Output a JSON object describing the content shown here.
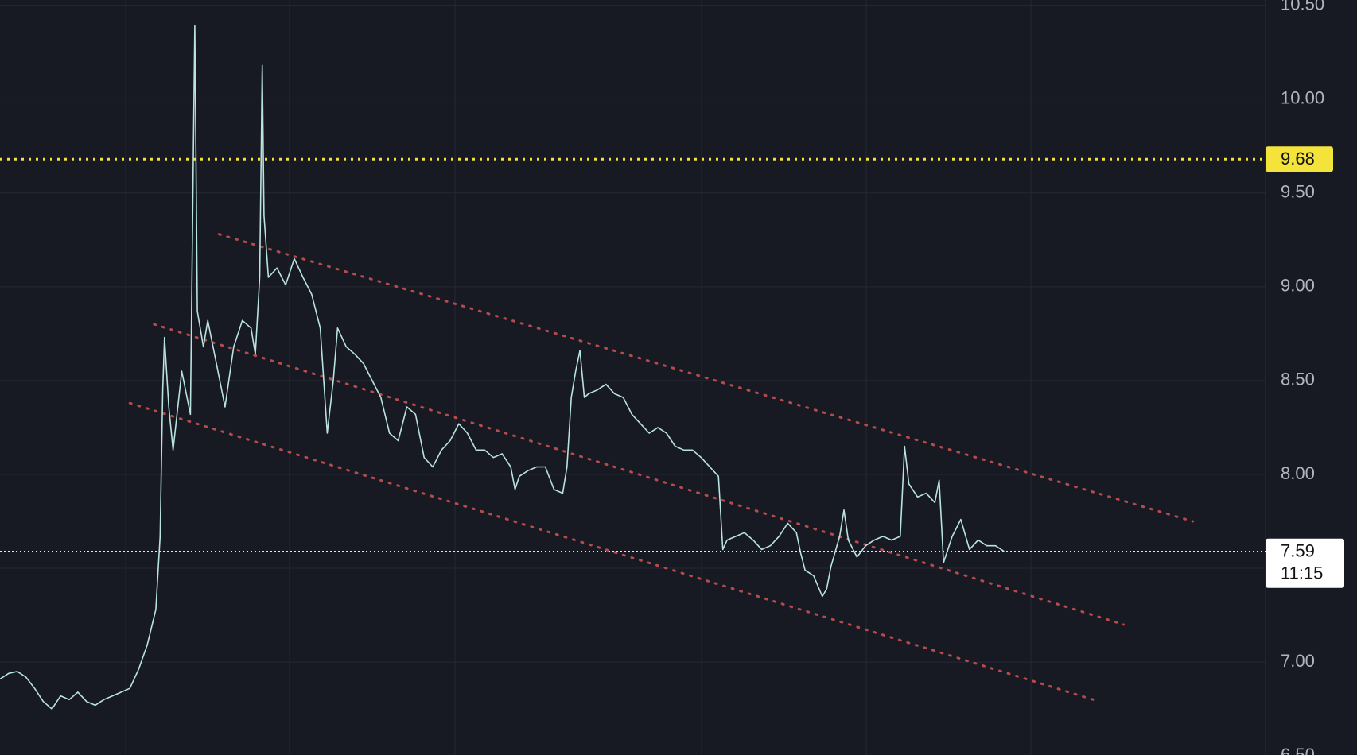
{
  "chart_data": {
    "type": "line",
    "color": "#b9e3de",
    "x": [
      0,
      1,
      2,
      3,
      4,
      5,
      6,
      7,
      8,
      9,
      10,
      11,
      12,
      13,
      14,
      15,
      16,
      17,
      18,
      18.5,
      18.8,
      19,
      19.5,
      20,
      21,
      22,
      22.5,
      22.8,
      23.5,
      24,
      25,
      26,
      27,
      28,
      29,
      29.5,
      30,
      30.3,
      30.5,
      31,
      32,
      33,
      34,
      35,
      36,
      37,
      37.8,
      38.5,
      39,
      40,
      41,
      42,
      43,
      44,
      45,
      46,
      47,
      48,
      49,
      50,
      51,
      52,
      53,
      54,
      55,
      56,
      57,
      58,
      59,
      59.5,
      60,
      61,
      62,
      63,
      64,
      65,
      65.5,
      66,
      66.5,
      67,
      67.5,
      68,
      69,
      70,
      71,
      72,
      73,
      74,
      75,
      76,
      77,
      78,
      79,
      80,
      81,
      82,
      83,
      83.5,
      84,
      85,
      86,
      87,
      88,
      89,
      90,
      91,
      92,
      92.5,
      93,
      94,
      95,
      95.5,
      96,
      97,
      97.5,
      98,
      99,
      100,
      101,
      102,
      103,
      104,
      104.5,
      105,
      106,
      107,
      108,
      108.5,
      109,
      110,
      111,
      112,
      113,
      114,
      115,
      116
    ],
    "values": [
      6.91,
      6.94,
      6.95,
      6.92,
      6.86,
      6.79,
      6.75,
      6.82,
      6.8,
      6.84,
      6.79,
      6.77,
      6.8,
      6.82,
      6.84,
      6.86,
      6.96,
      7.09,
      7.28,
      7.67,
      8.45,
      8.73,
      8.36,
      8.13,
      8.55,
      8.32,
      10.39,
      8.87,
      8.68,
      8.82,
      8.59,
      8.36,
      8.68,
      8.82,
      8.78,
      8.64,
      9.05,
      10.18,
      9.38,
      9.05,
      9.1,
      9.01,
      9.15,
      9.05,
      8.96,
      8.78,
      8.22,
      8.5,
      8.78,
      8.68,
      8.64,
      8.59,
      8.5,
      8.41,
      8.22,
      8.18,
      8.36,
      8.32,
      8.09,
      8.04,
      8.13,
      8.18,
      8.27,
      8.22,
      8.13,
      8.13,
      8.09,
      8.11,
      8.04,
      7.92,
      7.99,
      8.02,
      8.04,
      8.04,
      7.92,
      7.9,
      8.04,
      8.41,
      8.55,
      8.66,
      8.41,
      8.43,
      8.45,
      8.48,
      8.43,
      8.41,
      8.32,
      8.27,
      8.22,
      8.25,
      8.22,
      8.15,
      8.13,
      8.13,
      8.09,
      8.04,
      7.99,
      7.6,
      7.65,
      7.67,
      7.69,
      7.65,
      7.6,
      7.62,
      7.67,
      7.74,
      7.69,
      7.58,
      7.49,
      7.46,
      7.35,
      7.39,
      7.51,
      7.67,
      7.81,
      7.65,
      7.56,
      7.62,
      7.65,
      7.67,
      7.65,
      7.67,
      8.15,
      7.95,
      7.88,
      7.9,
      7.85,
      7.97,
      7.53,
      7.67,
      7.76,
      7.6,
      7.65,
      7.62,
      7.62,
      7.59
    ],
    "xlim": [
      0,
      146.2
    ],
    "ylim": [
      6.505,
      10.528
    ],
    "yticks": [
      {
        "value": 10.5,
        "label": "10.50"
      },
      {
        "value": 10,
        "label": "10.00"
      },
      {
        "value": 9.5,
        "label": "9.50"
      },
      {
        "value": 9,
        "label": "9.00"
      },
      {
        "value": 8.5,
        "label": "8.50"
      },
      {
        "value": 8,
        "label": "8.00"
      },
      {
        "value": 7.5,
        "label": "7.50"
      },
      {
        "value": 7,
        "label": "7.00"
      },
      {
        "value": 6.5,
        "label": "6.50"
      }
    ],
    "grid": true,
    "level_line": {
      "value": 9.68,
      "color": "#f3e33b"
    },
    "current_price": {
      "value": 7.59,
      "countdown": "11:15"
    },
    "trendline_color": "#b64b4b",
    "trendlines": [
      {
        "start_x": 25.3,
        "start_value": 9.28,
        "end_x": 137.8,
        "end_value": 7.75
      },
      {
        "start_x": 17.8,
        "start_value": 8.8,
        "end_x": 129.8,
        "end_value": 7.2
      },
      {
        "start_x": 15.0,
        "start_value": 8.38,
        "end_x": 127.0,
        "end_value": 6.79
      }
    ]
  }
}
